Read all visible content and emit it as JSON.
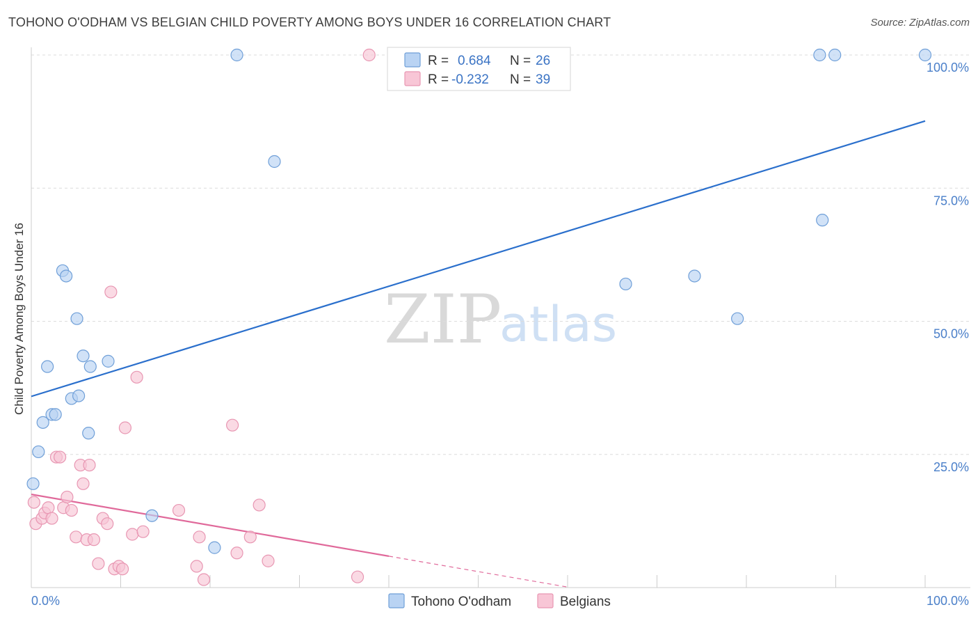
{
  "header": {
    "title": "TOHONO O'ODHAM VS BELGIAN CHILD POVERTY AMONG BOYS UNDER 16 CORRELATION CHART",
    "source": "Source: ZipAtlas.com"
  },
  "watermark": {
    "zip": "ZIP",
    "atlas": "atlas"
  },
  "legend": {
    "rows": [
      {
        "r_label": "R =",
        "r_value": "0.684",
        "n_label": "N =",
        "n_value": "26"
      },
      {
        "r_label": "R =",
        "r_value": "-0.232",
        "n_label": "N =",
        "n_value": "39"
      }
    ]
  },
  "bottom_legend": {
    "series1": "Tohono O'odham",
    "series2": "Belgians"
  },
  "colors": {
    "series1_fill": "#b9d3f3",
    "series1_stroke": "#6f9fd8",
    "series1_line": "#2a6fcc",
    "series2_fill": "#f8c6d6",
    "series2_stroke": "#e896b2",
    "series2_line": "#e0699a",
    "grid": "#dcdcdc",
    "tick_text": "#4a7fc9"
  },
  "chart_data": {
    "type": "scatter",
    "title": "TOHONO O'ODHAM VS BELGIAN CHILD POVERTY AMONG BOYS UNDER 16 CORRELATION CHART",
    "xlabel": "",
    "ylabel": "Child Poverty Among Boys Under 16",
    "xlim": [
      0,
      100
    ],
    "ylim": [
      0,
      100
    ],
    "x_ticks": [
      "0.0%",
      "100.0%"
    ],
    "y_ticks": [
      {
        "value": 25,
        "label": "25.0%"
      },
      {
        "value": 50,
        "label": "50.0%"
      },
      {
        "value": 75,
        "label": "75.0%"
      },
      {
        "value": 100,
        "label": "100.0%"
      }
    ],
    "series": [
      {
        "name": "Tohono O'odham",
        "r": 0.684,
        "n": 26,
        "trend": {
          "x0": 0,
          "y0": 35.9,
          "x1": 100,
          "y1": 87.6
        },
        "points": [
          [
            0.2,
            19.5
          ],
          [
            0.8,
            25.5
          ],
          [
            1.3,
            31.0
          ],
          [
            1.8,
            41.5
          ],
          [
            2.3,
            32.5
          ],
          [
            2.7,
            32.5
          ],
          [
            3.5,
            59.5
          ],
          [
            3.9,
            58.5
          ],
          [
            4.5,
            35.5
          ],
          [
            5.1,
            50.5
          ],
          [
            5.3,
            36.0
          ],
          [
            5.8,
            43.5
          ],
          [
            6.4,
            29.0
          ],
          [
            6.6,
            41.5
          ],
          [
            8.6,
            42.5
          ],
          [
            13.5,
            13.5
          ],
          [
            20.5,
            7.5
          ],
          [
            23.0,
            100.0
          ],
          [
            27.2,
            80.0
          ],
          [
            66.5,
            57.0
          ],
          [
            74.2,
            58.5
          ],
          [
            79.0,
            50.5
          ],
          [
            88.2,
            100.0
          ],
          [
            88.5,
            69.0
          ],
          [
            89.9,
            100.0
          ],
          [
            100.0,
            100.0
          ]
        ]
      },
      {
        "name": "Belgians",
        "r": -0.232,
        "n": 39,
        "trend": {
          "x0": 0,
          "y0": 17.5,
          "x1": 40,
          "y1": 5.9,
          "dash_to_x": 60,
          "dash_to_y": 0.1
        },
        "points": [
          [
            0.3,
            16.0
          ],
          [
            0.5,
            12.0
          ],
          [
            1.2,
            13.0
          ],
          [
            1.5,
            14.0
          ],
          [
            1.9,
            15.0
          ],
          [
            2.3,
            13.0
          ],
          [
            2.8,
            24.5
          ],
          [
            3.2,
            24.5
          ],
          [
            3.6,
            15.0
          ],
          [
            4.0,
            17.0
          ],
          [
            4.5,
            14.5
          ],
          [
            5.0,
            9.5
          ],
          [
            5.5,
            23.0
          ],
          [
            5.8,
            19.5
          ],
          [
            6.2,
            9.0
          ],
          [
            6.5,
            23.0
          ],
          [
            7.0,
            9.0
          ],
          [
            7.5,
            4.5
          ],
          [
            8.0,
            13.0
          ],
          [
            8.5,
            12.0
          ],
          [
            8.9,
            55.5
          ],
          [
            9.3,
            3.5
          ],
          [
            9.8,
            4.0
          ],
          [
            10.2,
            3.5
          ],
          [
            10.5,
            30.0
          ],
          [
            11.3,
            10.0
          ],
          [
            11.8,
            39.5
          ],
          [
            12.5,
            10.5
          ],
          [
            16.5,
            14.5
          ],
          [
            18.5,
            4.0
          ],
          [
            18.8,
            9.5
          ],
          [
            19.3,
            1.5
          ],
          [
            22.5,
            30.5
          ],
          [
            23.0,
            6.5
          ],
          [
            24.5,
            9.5
          ],
          [
            25.5,
            15.5
          ],
          [
            26.5,
            5.0
          ],
          [
            36.5,
            2.0
          ],
          [
            37.8,
            100.0
          ]
        ]
      }
    ]
  }
}
